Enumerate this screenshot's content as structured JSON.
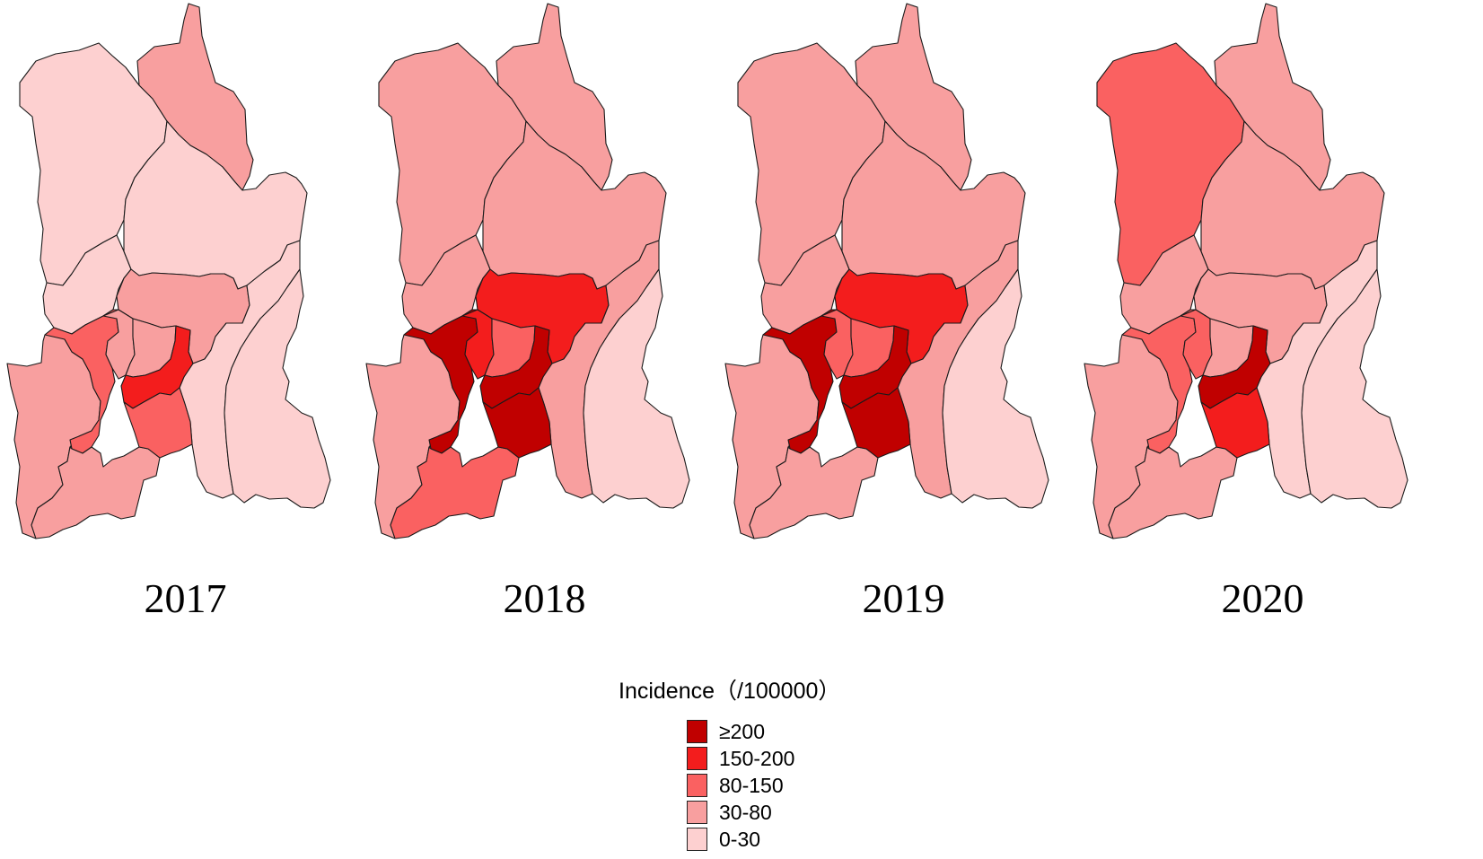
{
  "legend": {
    "title": "Incidence（/100000）",
    "classes": [
      {
        "label": "≥200",
        "color": "#c00000"
      },
      {
        "label": "150-200",
        "color": "#f31d1d"
      },
      {
        "label": "80-150",
        "color": "#fa6161"
      },
      {
        "label": "30-80",
        "color": "#f89f9f"
      },
      {
        "label": "0-30",
        "color": "#fdd0d0"
      }
    ]
  },
  "panels": [
    {
      "year": "2017",
      "classes": {
        "north_west": "0-30",
        "north_east": "30-80",
        "west_mid": "0-30",
        "east_mid": "0-30",
        "center_north": "30-80",
        "far_west": "30-80",
        "west_inner": "80-150",
        "center_a": "30-80",
        "center_b": "30-80",
        "center_east": "150-200",
        "east_big": "0-30",
        "far_east": "0-30",
        "southwest": "30-80",
        "south_center": "80-150"
      }
    },
    {
      "year": "2018",
      "classes": {
        "north_west": "30-80",
        "north_east": "30-80",
        "west_mid": "30-80",
        "east_mid": "30-80",
        "center_north": "150-200",
        "far_west": "30-80",
        "west_inner": "≥200",
        "center_a": "150-200",
        "center_b": "80-150",
        "center_east": "≥200",
        "east_big": "30-80",
        "far_east": "0-30",
        "southwest": "80-150",
        "south_center": "≥200"
      }
    },
    {
      "year": "2019",
      "classes": {
        "north_west": "30-80",
        "north_east": "30-80",
        "west_mid": "30-80",
        "east_mid": "30-80",
        "center_north": "150-200",
        "far_west": "30-80",
        "west_inner": "≥200",
        "center_a": "80-150",
        "center_b": "80-150",
        "center_east": "≥200",
        "east_big": "30-80",
        "far_east": "0-30",
        "southwest": "30-80",
        "south_center": "≥200"
      }
    },
    {
      "year": "2020",
      "classes": {
        "north_west": "80-150",
        "north_east": "30-80",
        "west_mid": "30-80",
        "east_mid": "30-80",
        "center_north": "30-80",
        "far_west": "30-80",
        "west_inner": "80-150",
        "center_a": "80-150",
        "center_b": "30-80",
        "center_east": "≥200",
        "east_big": "0-30",
        "far_east": "0-30",
        "southwest": "30-80",
        "south_center": "150-200"
      }
    }
  ]
}
